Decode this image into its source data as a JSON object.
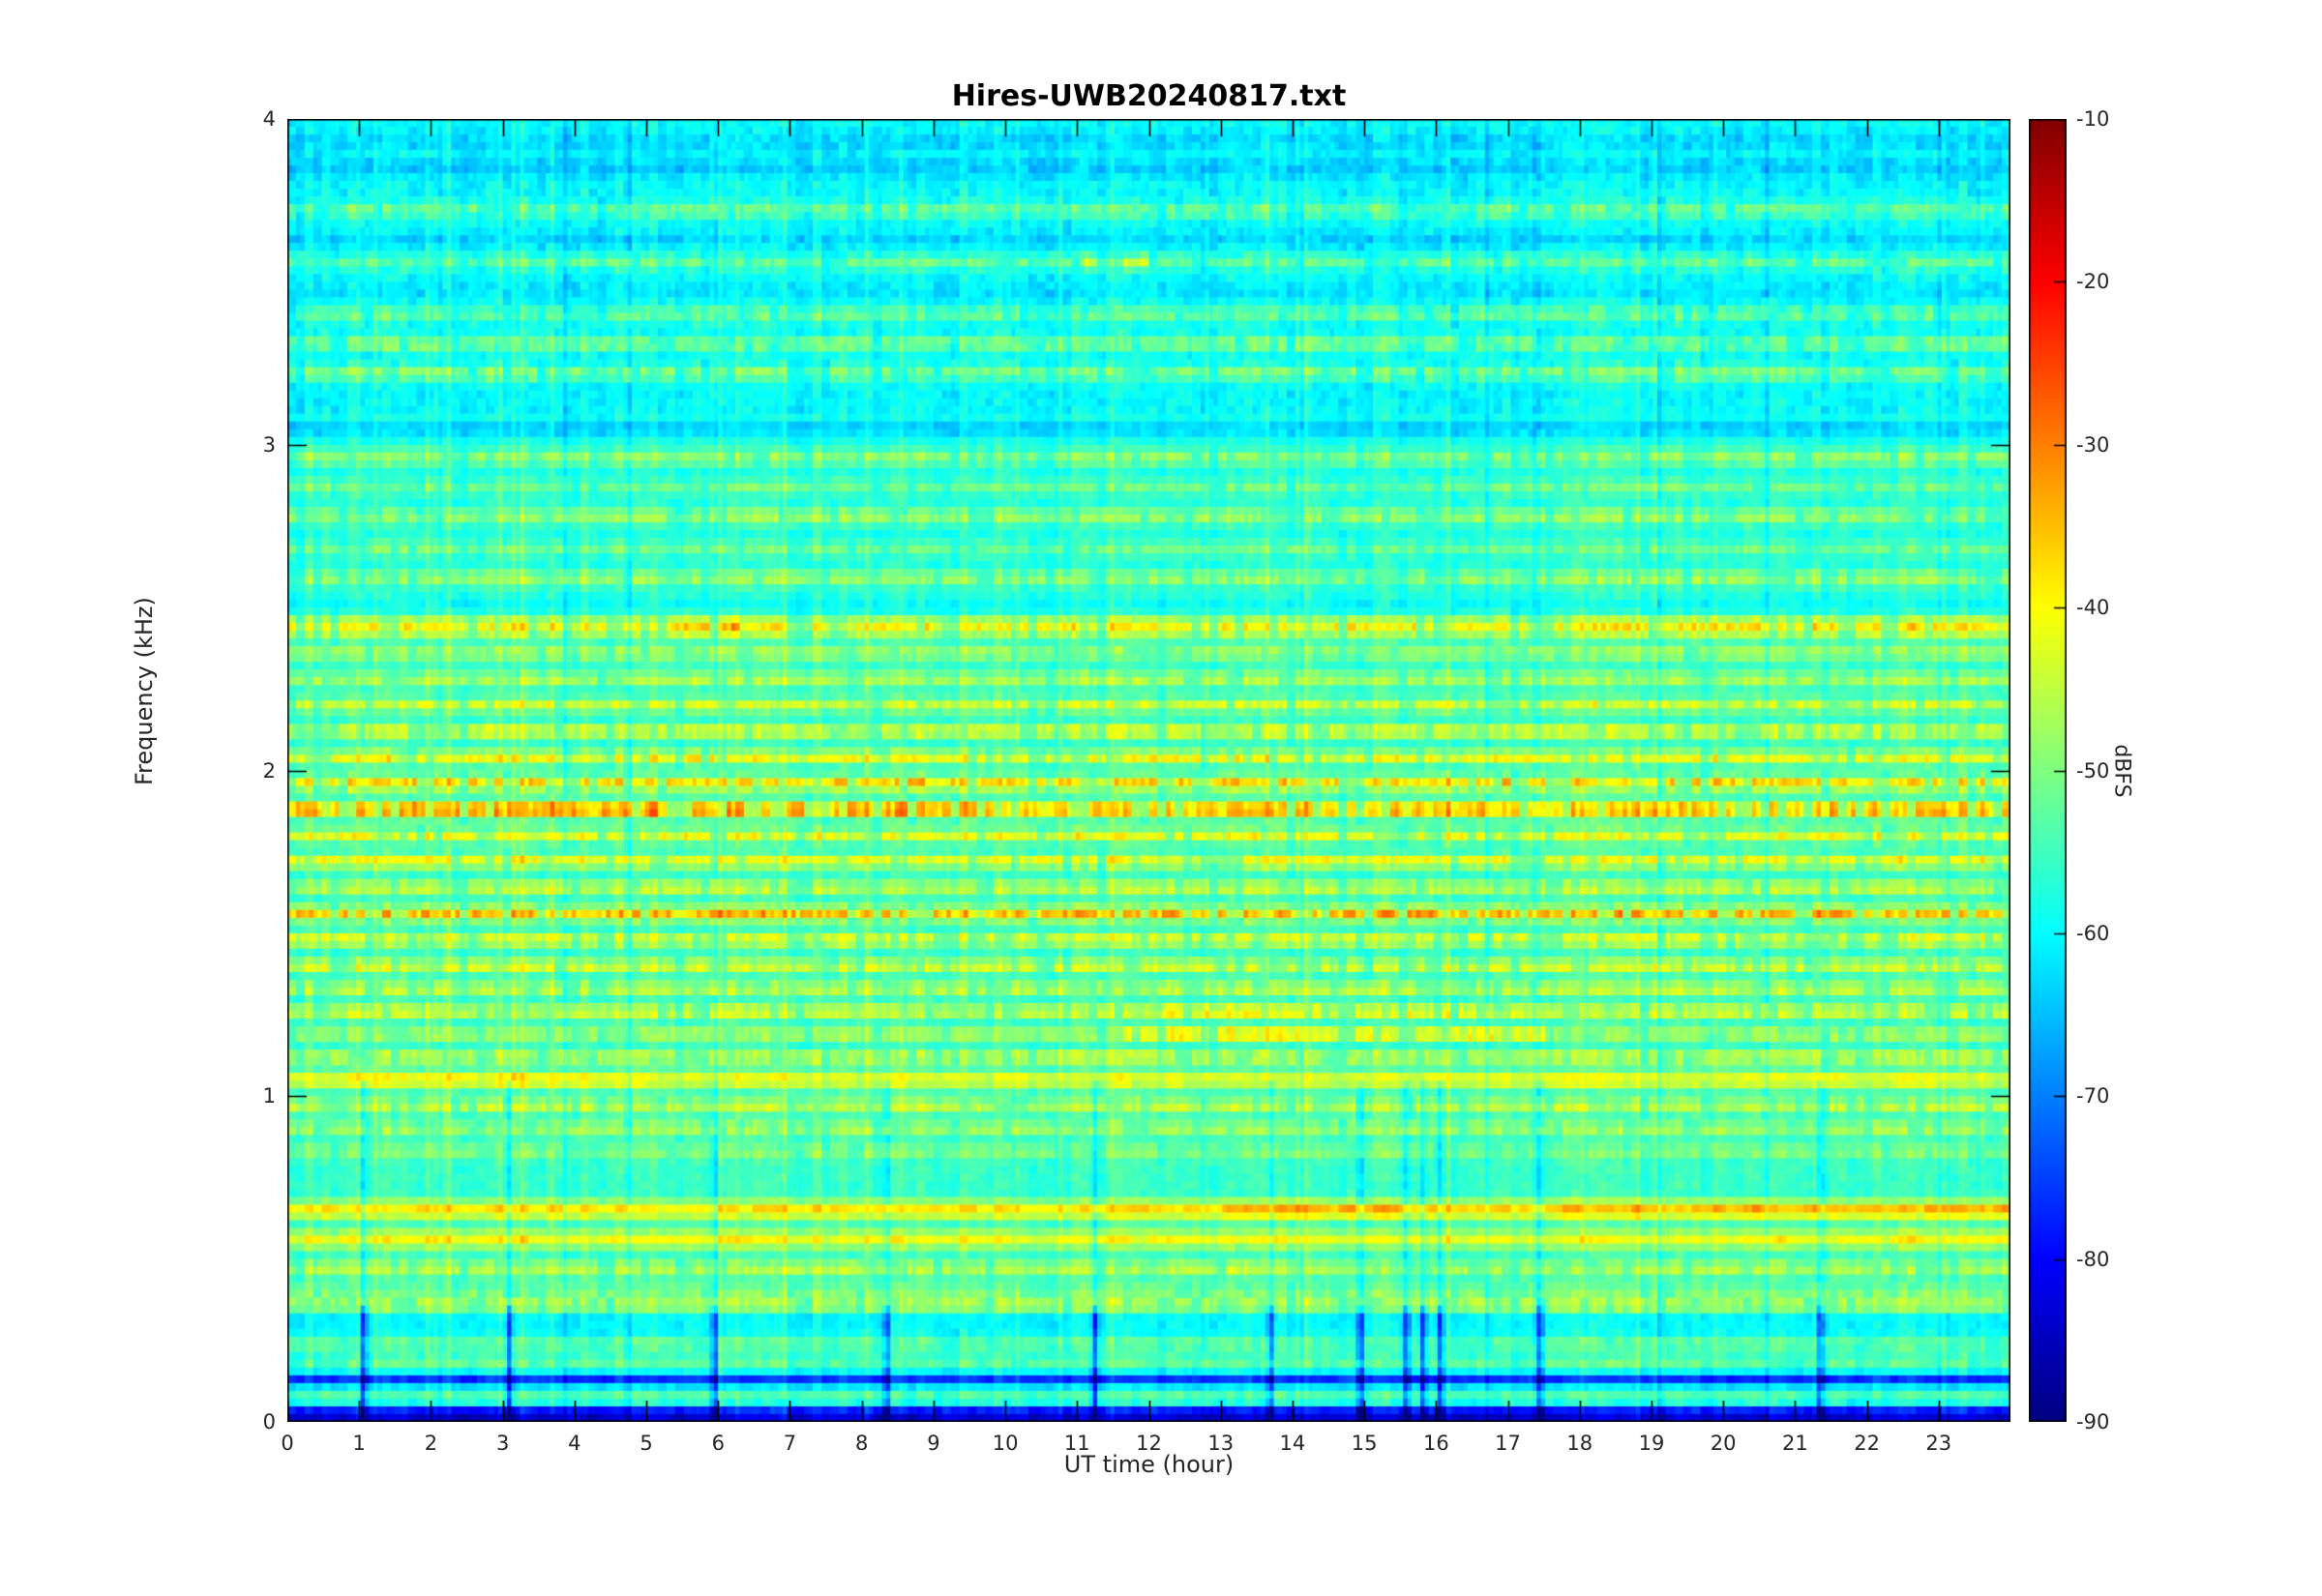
{
  "figure": {
    "title": "Hires-UWB20240817.txt"
  },
  "chart_data": {
    "type": "heatmap",
    "subtype": "spectrogram",
    "title": "Hires-UWB20240817.txt",
    "xlabel": "UT time (hour)",
    "ylabel": "Frequency (kHz)",
    "x_range": [
      0,
      24
    ],
    "y_range": [
      0,
      4
    ],
    "x_ticks": [
      0,
      1,
      2,
      3,
      4,
      5,
      6,
      7,
      8,
      9,
      10,
      11,
      12,
      13,
      14,
      15,
      16,
      17,
      18,
      19,
      20,
      21,
      22,
      23
    ],
    "y_ticks": [
      0,
      1,
      2,
      3,
      4
    ],
    "grid": false,
    "colormap": "jet",
    "colorbar": {
      "label": "dBFS",
      "ticks": [
        -10,
        -20,
        -30,
        -40,
        -50,
        -60,
        -70,
        -80,
        -90
      ],
      "range": [
        -90,
        -10
      ],
      "position": "right"
    },
    "background_db_profile": [
      {
        "f_min": 3.1,
        "f_max": 4.0,
        "db": -60
      },
      {
        "f_min": 2.5,
        "f_max": 3.1,
        "db": -57.5
      },
      {
        "f_min": 0.33,
        "f_max": 2.5,
        "db": -55.5
      },
      {
        "f_min": 0.26,
        "f_max": 0.33,
        "db": -60
      },
      {
        "f_min": 0.0,
        "f_max": 0.26,
        "db": -57
      }
    ],
    "bands": [
      {
        "f": 3.93,
        "w": 0.03,
        "db": -63,
        "style": "smooth"
      },
      {
        "f": 3.85,
        "w": 0.03,
        "db": -64,
        "style": "smooth"
      },
      {
        "f": 3.72,
        "w": 0.025,
        "db": -52,
        "style": "dot"
      },
      {
        "f": 3.63,
        "w": 0.02,
        "db": -63,
        "style": "smooth"
      },
      {
        "f": 3.56,
        "w": 0.025,
        "db": -52,
        "style": "dot",
        "win": [
          [
            11.1,
            12.0,
            -46
          ]
        ]
      },
      {
        "f": 3.47,
        "w": 0.02,
        "db": -62,
        "style": "smooth"
      },
      {
        "f": 3.4,
        "w": 0.025,
        "db": -52,
        "style": "dot"
      },
      {
        "f": 3.31,
        "w": 0.025,
        "db": -50,
        "style": "dot"
      },
      {
        "f": 3.22,
        "w": 0.025,
        "db": -50,
        "style": "dot"
      },
      {
        "f": 3.05,
        "w": 0.025,
        "db": -64,
        "style": "smooth"
      },
      {
        "f": 2.96,
        "w": 0.025,
        "db": -49,
        "style": "dot"
      },
      {
        "f": 2.87,
        "w": 0.022,
        "db": -51,
        "style": "dot"
      },
      {
        "f": 2.78,
        "w": 0.025,
        "db": -48,
        "style": "dot"
      },
      {
        "f": 2.68,
        "w": 0.022,
        "db": -51,
        "style": "dot"
      },
      {
        "f": 2.59,
        "w": 0.025,
        "db": -48,
        "style": "dot"
      },
      {
        "f": 2.5,
        "w": 0.02,
        "db": -60,
        "style": "smooth"
      },
      {
        "f": 2.44,
        "w": 0.032,
        "db": -41,
        "style": "dot",
        "win": [
          [
            5.2,
            6.3,
            -37
          ],
          [
            18,
            24,
            -40
          ]
        ]
      },
      {
        "f": 2.36,
        "w": 0.02,
        "db": -47,
        "style": "dot"
      },
      {
        "f": 2.28,
        "w": 0.02,
        "db": -46,
        "style": "dot"
      },
      {
        "f": 2.2,
        "w": 0.02,
        "db": -44,
        "style": "dot"
      },
      {
        "f": 2.12,
        "w": 0.02,
        "db": -42,
        "style": "dot"
      },
      {
        "f": 2.04,
        "w": 0.02,
        "db": -41,
        "style": "dot"
      },
      {
        "f": 1.96,
        "w": 0.022,
        "db": -38,
        "style": "dot"
      },
      {
        "f": 1.88,
        "w": 0.024,
        "db": -33,
        "style": "dot",
        "win": [
          [
            0,
            10,
            -30
          ]
        ]
      },
      {
        "f": 1.8,
        "w": 0.02,
        "db": -42,
        "style": "dot"
      },
      {
        "f": 1.72,
        "w": 0.02,
        "db": -41,
        "style": "dot"
      },
      {
        "f": 1.64,
        "w": 0.02,
        "db": -44,
        "style": "dot"
      },
      {
        "f": 1.56,
        "w": 0.022,
        "db": -36,
        "style": "dot"
      },
      {
        "f": 1.48,
        "w": 0.02,
        "db": -42,
        "style": "dot"
      },
      {
        "f": 1.4,
        "w": 0.02,
        "db": -43,
        "style": "dot"
      },
      {
        "f": 1.33,
        "w": 0.02,
        "db": -44,
        "style": "dot"
      },
      {
        "f": 1.26,
        "w": 0.02,
        "db": -43,
        "style": "dot",
        "win": [
          [
            12.2,
            17.2,
            -38
          ]
        ]
      },
      {
        "f": 1.19,
        "w": 0.02,
        "db": -46,
        "style": "dot",
        "win": [
          [
            11.5,
            17.6,
            -37
          ]
        ]
      },
      {
        "f": 1.12,
        "w": 0.02,
        "db": -44,
        "style": "dot"
      },
      {
        "f": 1.05,
        "w": 0.026,
        "db": -41,
        "style": "band",
        "win": [
          [
            0,
            5,
            -39
          ]
        ]
      },
      {
        "f": 0.97,
        "w": 0.022,
        "db": -45,
        "style": "dot"
      },
      {
        "f": 0.9,
        "w": 0.022,
        "db": -47,
        "style": "dot"
      },
      {
        "f": 0.83,
        "w": 0.02,
        "db": -49,
        "style": "dot"
      },
      {
        "f": 0.65,
        "w": 0.028,
        "db": -38,
        "style": "band",
        "win": [
          [
            13,
            24,
            -34
          ]
        ]
      },
      {
        "f": 0.56,
        "w": 0.028,
        "db": -41,
        "style": "band"
      },
      {
        "f": 0.47,
        "w": 0.024,
        "db": -46,
        "style": "dot"
      },
      {
        "f": 0.4,
        "w": 0.02,
        "db": -49,
        "style": "dot"
      },
      {
        "f": 0.36,
        "w": 0.022,
        "db": -46,
        "style": "dot"
      },
      {
        "f": 0.24,
        "w": 0.022,
        "db": -52,
        "style": "dot"
      },
      {
        "f": 0.18,
        "w": 0.025,
        "db": -52,
        "style": "dot"
      },
      {
        "f": 0.13,
        "w": 0.02,
        "db": -76,
        "style": "smooth"
      },
      {
        "f": 0.07,
        "w": 0.022,
        "db": -52,
        "style": "dot"
      },
      {
        "f": 0.02,
        "w": 0.028,
        "db": -86,
        "style": "smooth"
      }
    ],
    "dropout_hours": [
      1.03,
      3.07,
      5.92,
      8.32,
      11.22,
      13.66,
      14.92,
      15.56,
      15.79,
      16.03,
      17.42,
      21.32
    ]
  }
}
